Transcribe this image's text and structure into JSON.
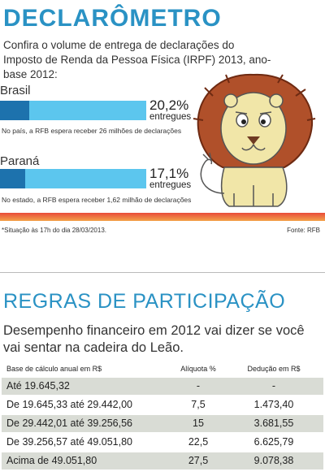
{
  "title": "DECLARÔMETRO",
  "subtitle": "Confira o volume de entrega de declarações do Imposto de Renda da Pessoa Física (IRPF) 2013, ano-base 2012:",
  "regions": [
    {
      "name": "Brasil",
      "percent_label": "20,2%",
      "sub_label": "entregues",
      "progress": 0.202,
      "note": "No país, a RFB espera receber 26 milhões de declarações"
    },
    {
      "name": "Paraná",
      "percent_label": "17,1%",
      "sub_label": "entregues",
      "progress": 0.171,
      "note": "No estado, a RFB espera receber 1,62 milhão de declarações"
    }
  ],
  "footnote": "*Situação às 17h do dia 28/03/2013.",
  "source": "Fonte: RFB",
  "rules": {
    "title": "REGRAS DE PARTICIPAÇÃO",
    "lead": "Desempenho financeiro em 2012 vai dizer se você vai sentar na cadeira do Leão.",
    "headers": [
      "Base de cálculo anual em R$",
      "Alíquota %",
      "Dedução em R$"
    ],
    "rows": [
      [
        "Até 19.645,32",
        "-",
        "-"
      ],
      [
        "De 19.645,33 até 29.442,00",
        "7,5",
        "1.473,40"
      ],
      [
        "De 29.442,01 até 39.256,56",
        "15",
        "3.681,55"
      ],
      [
        "De 39.256,57 até 49.051,80",
        "22,5",
        "6.625,79"
      ],
      [
        "Acima de 49.051,80",
        "27,5",
        "9.078,38"
      ]
    ]
  },
  "colors": {
    "accent": "#2a92c4",
    "bar_light": "#5cc6ee",
    "bar_dark": "#1d72ad",
    "band": "#e84b3a",
    "row_shade": "#d9dcd5"
  },
  "illustration": "lion-illustration"
}
